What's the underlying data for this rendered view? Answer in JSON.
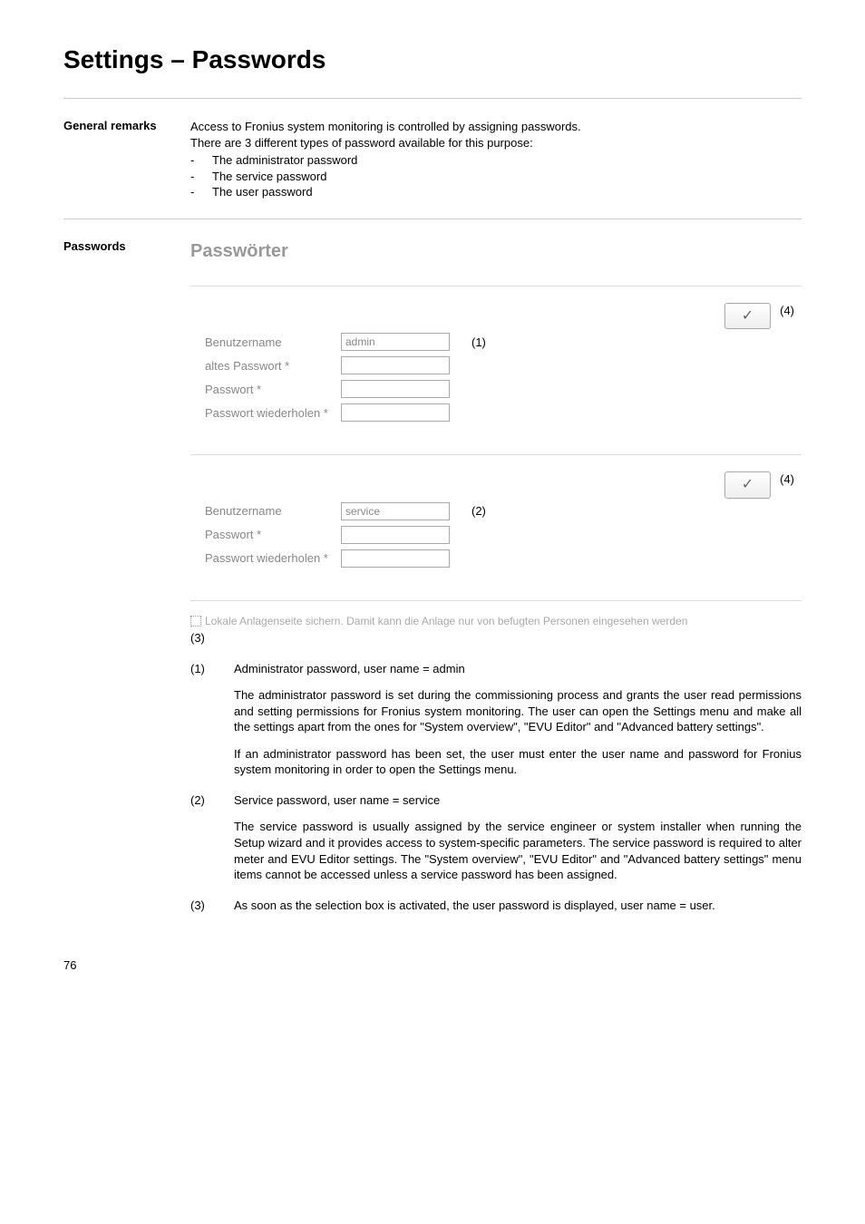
{
  "page": {
    "title": "Settings – Passwords",
    "page_number": "76"
  },
  "general_remarks": {
    "heading": "General remarks",
    "intro1": "Access to Fronius system monitoring is controlled by assigning passwords.",
    "intro2": "There are 3 different types of password available for this purpose:",
    "bullets": [
      "The administrator password",
      "The service password",
      "The user password"
    ]
  },
  "passwords": {
    "heading": "Passwords",
    "panel_title": "Passwörter",
    "check_glyph": "✓",
    "annot_4a": "(4)",
    "annot_4b": "(4)",
    "annot_1": "(1)",
    "annot_2": "(2)",
    "annot_3": "(3)",
    "labels": {
      "benutzername": "Benutzername",
      "altes_passwort": "altes Passwort *",
      "passwort": "Passwort *",
      "passwort_wiederholen": "Passwort wiederholen *"
    },
    "values": {
      "admin": "admin",
      "service": "service"
    },
    "checkbox_text": "Lokale Anlagenseite sichern. Damit kann die Anlage nur von befugten Personen eingesehen werden",
    "items": {
      "n1_head": "Administrator password, user name = admin",
      "n1_p1": "The administrator password is set during the commissioning process and grants the user read permissions and setting permissions for Fronius system monitoring. The user can open the Settings menu and make all the settings apart from the ones for \"System overview\", \"EVU Editor\" and \"Advanced battery settings\".",
      "n1_p2": "If an administrator password has been set, the user must enter the user name and password for Fronius system monitoring in order to open the Settings menu.",
      "n2_head": "Service password, user name = service",
      "n2_p1": "The service password is usually assigned by the service engineer or system installer when running the Setup wizard and it provides access to system-specific parameters. The service password is required to alter meter and EVU Editor settings. The \"System overview\", \"EVU Editor\" and \"Advanced battery settings\" menu items cannot be accessed unless a service password has been assigned.",
      "n3_head": "As soon as the selection box is activated, the user password is displayed, user name = user."
    },
    "nums": {
      "n1": "(1)",
      "n2": "(2)",
      "n3": "(3)"
    }
  }
}
